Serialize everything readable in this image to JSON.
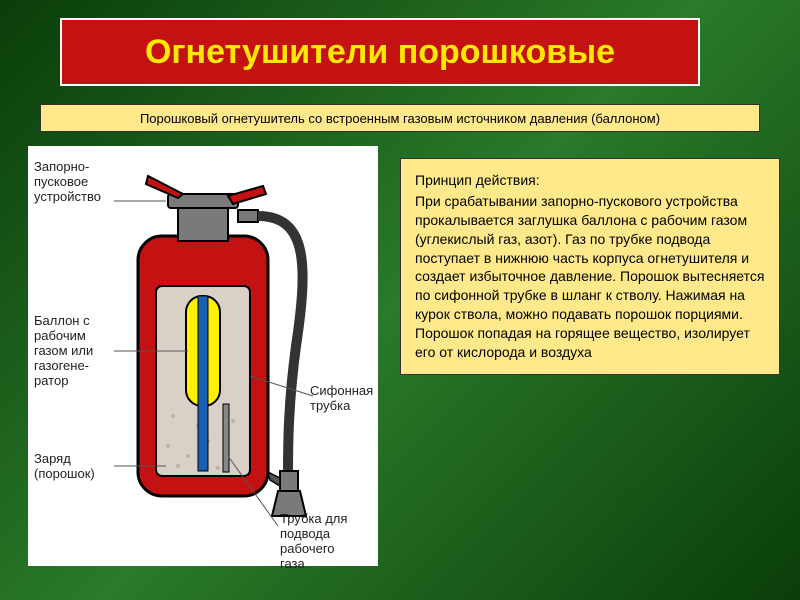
{
  "colors": {
    "title_bg": "#c41212",
    "title_text": "#ffe800",
    "subtitle_bg": "#ffe98a",
    "desc_bg": "#ffe98a",
    "diagram_bg": "#ffffff",
    "extinguisher_body": "#c41212",
    "extinguisher_outline": "#000000",
    "cartridge": "#fff200",
    "siphon_tube": "#1a5fb4",
    "powder": "#d9d0c7",
    "cap_metal": "#7a7a7a",
    "hose": "#333333",
    "nozzle": "#7a7a7a",
    "leader": "#555555"
  },
  "title": "Огнетушители порошковые",
  "subtitle": "Порошковый огнетушитель со встроенным газовым источником давления (баллоном)",
  "description": {
    "heading": "Принцип действия:",
    "text": "При срабатывании запорно-пускового устройства прокалывается заглушка баллона с рабочим газом (углекислый газ, азот). Газ по трубке подвода поступает в нижнюю часть корпуса огнетушителя и создает избыточное давление. Порошок вытесняется по сифонной трубке в шланг к стволу. Нажимая на курок ствола, можно подавать порошок порциями. Порошок попадая на горящее вещество, изолирует его от кислорода и воздуха"
  },
  "diagram": {
    "labels": {
      "trigger": "Запорно-\nпусковое\nустройство",
      "cartridge": "Баллон с\nрабочим\nгазом или\nгазогене-\nратор",
      "charge": "Заряд\n(порошок)",
      "siphon": "Сифонная\nтрубка",
      "gas_tube": "Трубка для\nподвода\nрабочего\nгаза"
    }
  }
}
